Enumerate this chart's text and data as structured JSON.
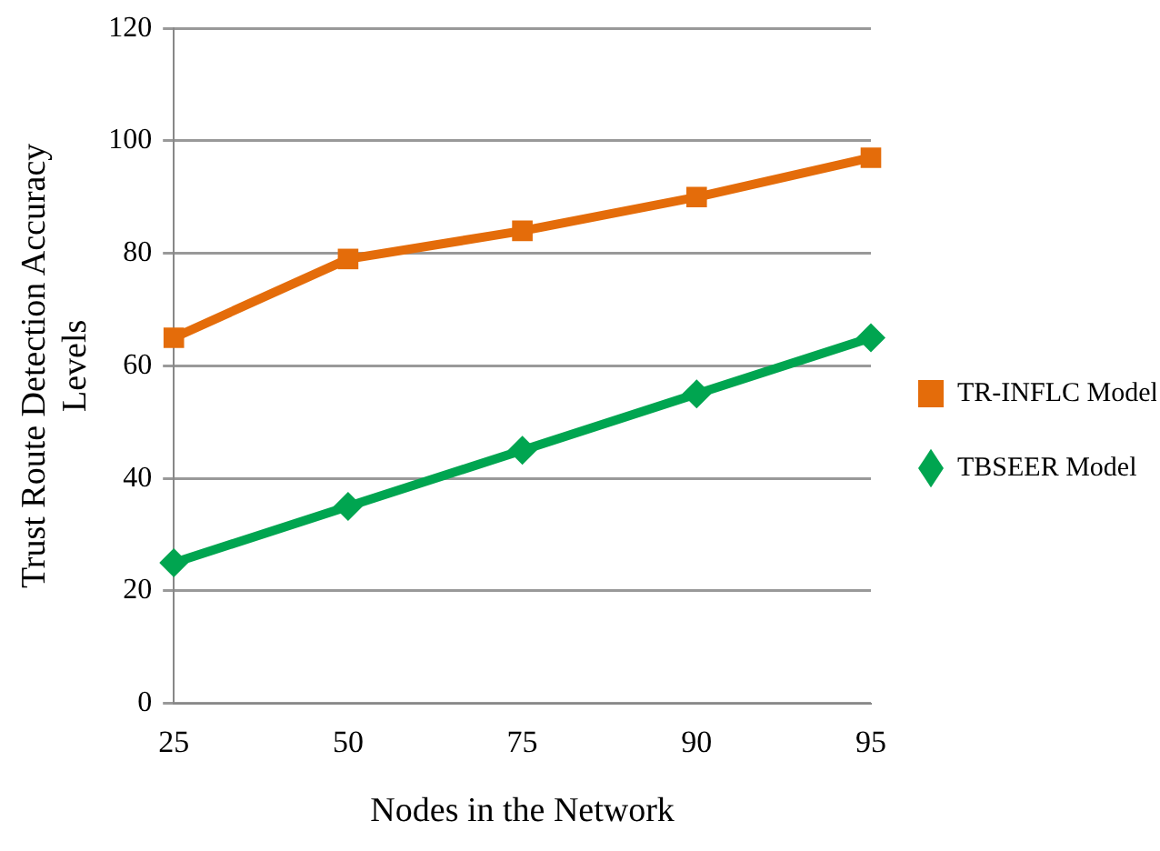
{
  "chart_data": {
    "type": "line",
    "xlabel": "Nodes in the Network",
    "ylabel": "Trust Route Detection Accuracy Levels",
    "categories": [
      "25",
      "50",
      "75",
      "90",
      "95"
    ],
    "series": [
      {
        "name": "TR-INFLC Model",
        "color": "#e46c0a",
        "marker": "square",
        "values": [
          65,
          79,
          84,
          90,
          97
        ]
      },
      {
        "name": "TBSEER Model",
        "color": "#00a550",
        "marker": "diamond",
        "values": [
          25,
          35,
          45,
          55,
          65
        ]
      }
    ],
    "ylim": [
      0,
      120
    ],
    "yticks": [
      0,
      20,
      40,
      60,
      80,
      100,
      120
    ],
    "grid": "y",
    "legend": "right",
    "line_style": "solid"
  }
}
